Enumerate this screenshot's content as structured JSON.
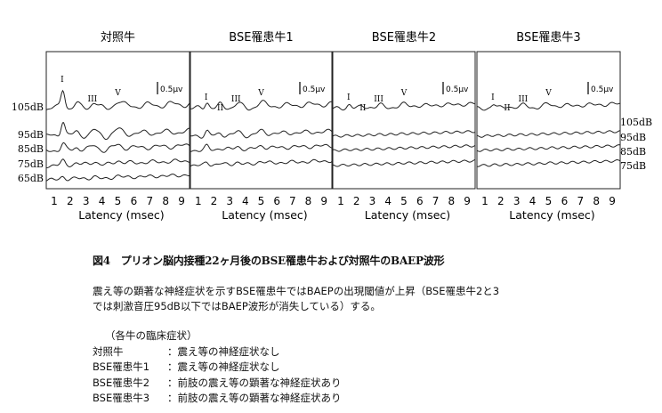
{
  "chart_data": {
    "type": "line",
    "panels": [
      {
        "title": "対照牛",
        "levels": [
          "105dB",
          "95dB",
          "85dB",
          "75dB",
          "65dB"
        ],
        "peaks": [
          "I",
          "III",
          "V"
        ],
        "scale": "0.5μv",
        "amplitude": 1.0
      },
      {
        "title": "BSE罹患牛1",
        "levels": [],
        "peaks": [
          "I",
          "II",
          "III",
          "V"
        ],
        "scale": "0.5μv",
        "amplitude": 0.75
      },
      {
        "title": "BSE罹患牛2",
        "levels": [],
        "peaks": [
          "I",
          "II",
          "III",
          "V"
        ],
        "scale": "0.5μv",
        "amplitude": 0.4
      },
      {
        "title": "BSE罹患牛3",
        "levels": [
          "105dB",
          "95dB",
          "85dB",
          "75dB"
        ],
        "peaks": [
          "I",
          "II",
          "III",
          "V"
        ],
        "scale": "0.5μv",
        "amplitude": 0.45
      }
    ],
    "x_ticks": [
      "1",
      "2",
      "3",
      "4",
      "5",
      "6",
      "7",
      "8",
      "9"
    ],
    "xlabel": "Latency (msec)",
    "xlim": [
      0.5,
      9.5
    ]
  },
  "caption": "図4　プリオン脳内接種22ヶ月後のBSE罹患牛および対照牛のBAEP波形",
  "description": [
    "震え等の顕著な神経症状を示すBSE罹患牛ではBAEPの出現閾値が上昇（BSE罹患牛2と3",
    "では刺激音圧95dB以下ではBAEP波形が消失している）する。"
  ],
  "clinical": {
    "header": "（各牛の臨床症状）",
    "rows": [
      {
        "name": "対照牛",
        "symptom": "：震え等の神経症状なし"
      },
      {
        "name": "BSE罹患牛1",
        "symptom": "：震え等の神経症状なし"
      },
      {
        "name": "BSE罹患牛2",
        "symptom": "：前肢の震え等の顕著な神経症状あり"
      },
      {
        "name": "BSE罹患牛3",
        "symptom": "：前肢の震え等の顕著な神経症状あり"
      }
    ]
  }
}
